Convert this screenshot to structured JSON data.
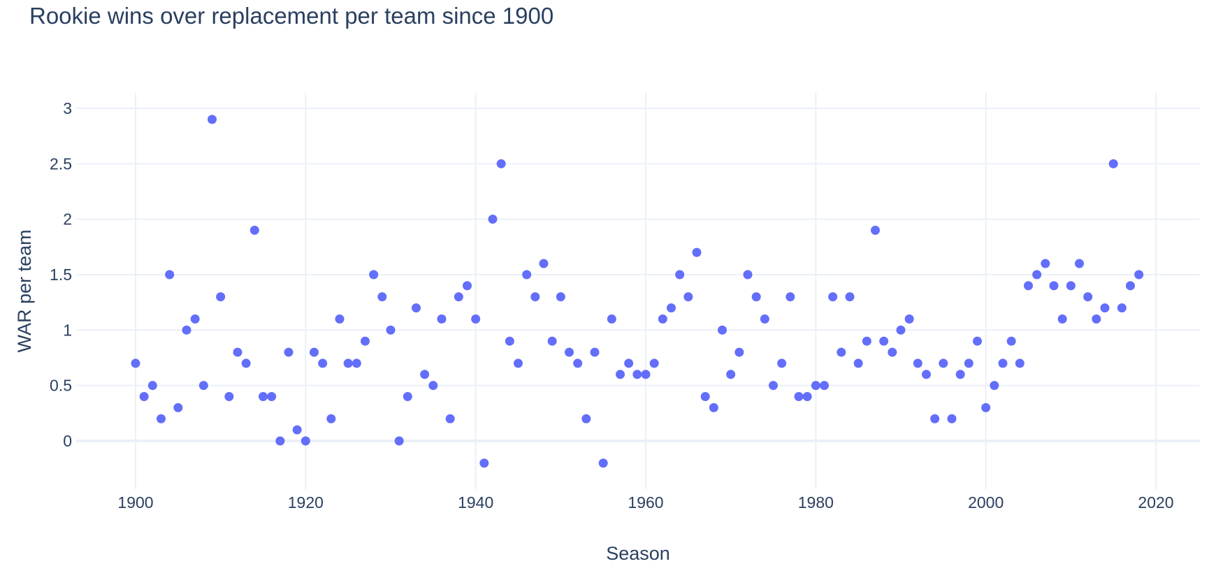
{
  "chart_data": {
    "type": "scatter",
    "title": "Rookie wins over replacement per team since 1900",
    "xlabel": "Season",
    "ylabel": "WAR per team",
    "xlim": [
      1893,
      2025
    ],
    "ylim": [
      -0.4,
      3.15
    ],
    "x_ticks": [
      1900,
      1920,
      1940,
      1960,
      1980,
      2000,
      2020
    ],
    "y_ticks": [
      0,
      0.5,
      1,
      1.5,
      2,
      2.5,
      3
    ],
    "y_tick_labels": [
      "0",
      "0.5",
      "1",
      "1.5",
      "2",
      "2.5",
      "3"
    ],
    "grid": true,
    "marker_color": "#636efa",
    "x": [
      1900,
      1901,
      1902,
      1903,
      1904,
      1905,
      1906,
      1907,
      1908,
      1909,
      1910,
      1911,
      1912,
      1913,
      1914,
      1915,
      1916,
      1917,
      1918,
      1919,
      1920,
      1921,
      1922,
      1923,
      1924,
      1925,
      1926,
      1927,
      1928,
      1929,
      1930,
      1931,
      1932,
      1933,
      1934,
      1935,
      1936,
      1937,
      1938,
      1939,
      1940,
      1941,
      1942,
      1943,
      1944,
      1945,
      1946,
      1947,
      1948,
      1949,
      1950,
      1951,
      1952,
      1953,
      1954,
      1955,
      1956,
      1957,
      1958,
      1959,
      1960,
      1961,
      1962,
      1963,
      1964,
      1965,
      1966,
      1967,
      1968,
      1969,
      1970,
      1971,
      1972,
      1973,
      1974,
      1975,
      1976,
      1977,
      1978,
      1979,
      1980,
      1981,
      1982,
      1983,
      1984,
      1985,
      1986,
      1987,
      1988,
      1989,
      1990,
      1991,
      1992,
      1993,
      1994,
      1995,
      1996,
      1997,
      1998,
      1999,
      2000,
      2001,
      2002,
      2003,
      2004,
      2005,
      2006,
      2007,
      2008,
      2009,
      2010,
      2011,
      2012,
      2013,
      2014,
      2015,
      2016,
      2017,
      2018
    ],
    "y": [
      0.7,
      0.4,
      0.5,
      0.2,
      1.5,
      0.3,
      1.0,
      1.1,
      0.5,
      2.9,
      1.3,
      0.4,
      0.8,
      0.7,
      1.9,
      0.4,
      0.4,
      0.0,
      0.8,
      0.1,
      0.0,
      0.8,
      0.7,
      0.2,
      1.1,
      0.7,
      0.7,
      0.9,
      1.5,
      1.3,
      1.0,
      0.0,
      0.4,
      1.2,
      0.6,
      0.5,
      1.1,
      0.2,
      1.3,
      1.4,
      1.1,
      -0.2,
      2.0,
      2.5,
      0.9,
      0.7,
      1.5,
      1.3,
      1.6,
      0.9,
      1.3,
      0.8,
      0.7,
      0.2,
      0.8,
      -0.2,
      1.1,
      0.6,
      0.7,
      0.6,
      0.6,
      0.7,
      1.1,
      1.2,
      1.5,
      1.3,
      1.7,
      0.4,
      0.3,
      1.0,
      0.6,
      0.8,
      1.5,
      1.3,
      1.1,
      0.5,
      0.7,
      1.3,
      0.4,
      0.4,
      0.5,
      0.5,
      1.3,
      0.8,
      1.3,
      0.7,
      0.9,
      1.9,
      0.9,
      0.8,
      1.0,
      1.1,
      0.7,
      0.6,
      0.2,
      0.7,
      0.2,
      0.6,
      0.7,
      0.9,
      0.3,
      0.5,
      0.7,
      0.9,
      0.7,
      1.4,
      1.5,
      1.6,
      1.4,
      1.1,
      1.4,
      1.6,
      1.3,
      1.1,
      1.2,
      2.5,
      1.2,
      1.4,
      1.5
    ]
  }
}
